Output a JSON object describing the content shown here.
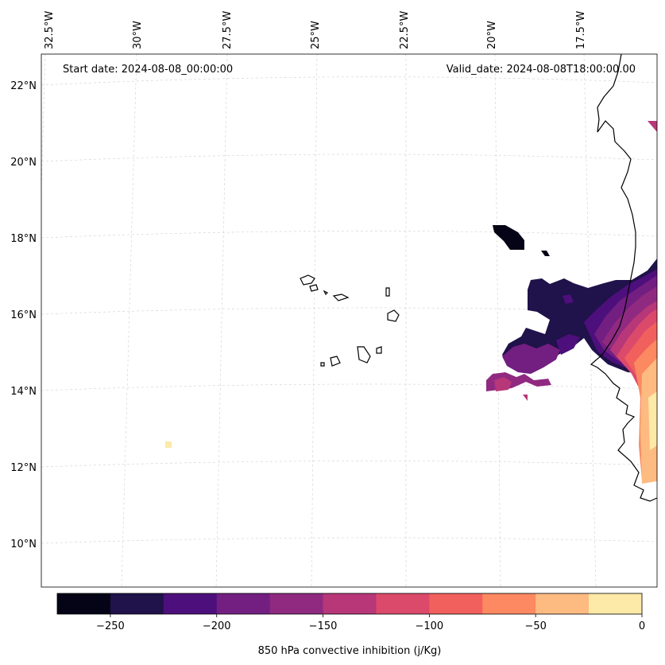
{
  "map": {
    "start_date_text": "Start date: 2024-08-08_00:00:00",
    "valid_date_text": "Valid_date: 2024-08-08T18:00:00.00",
    "lon_labels": [
      "32.5°W",
      "30°W",
      "27.5°W",
      "25°W",
      "22.5°W",
      "20°W",
      "17.5°W"
    ],
    "lat_labels": [
      "22°N",
      "20°N",
      "18°N",
      "16°N",
      "14°N",
      "12°N",
      "10°N"
    ],
    "grid": true
  },
  "colorbar": {
    "label": "850 hPa convective inhibition (j/Kg)",
    "ticks": [
      "−250",
      "−200",
      "−150",
      "−100",
      "−50",
      "0"
    ],
    "levels": [
      -275,
      -250,
      -225,
      -200,
      -175,
      -150,
      -125,
      -100,
      -75,
      -50,
      -25,
      0
    ],
    "colors": [
      "#050416",
      "#20124a",
      "#4d0f7c",
      "#721f81",
      "#902a81",
      "#b73779",
      "#db4a6a",
      "#f1605d",
      "#fc8961",
      "#febb81",
      "#fde9a8"
    ]
  }
}
